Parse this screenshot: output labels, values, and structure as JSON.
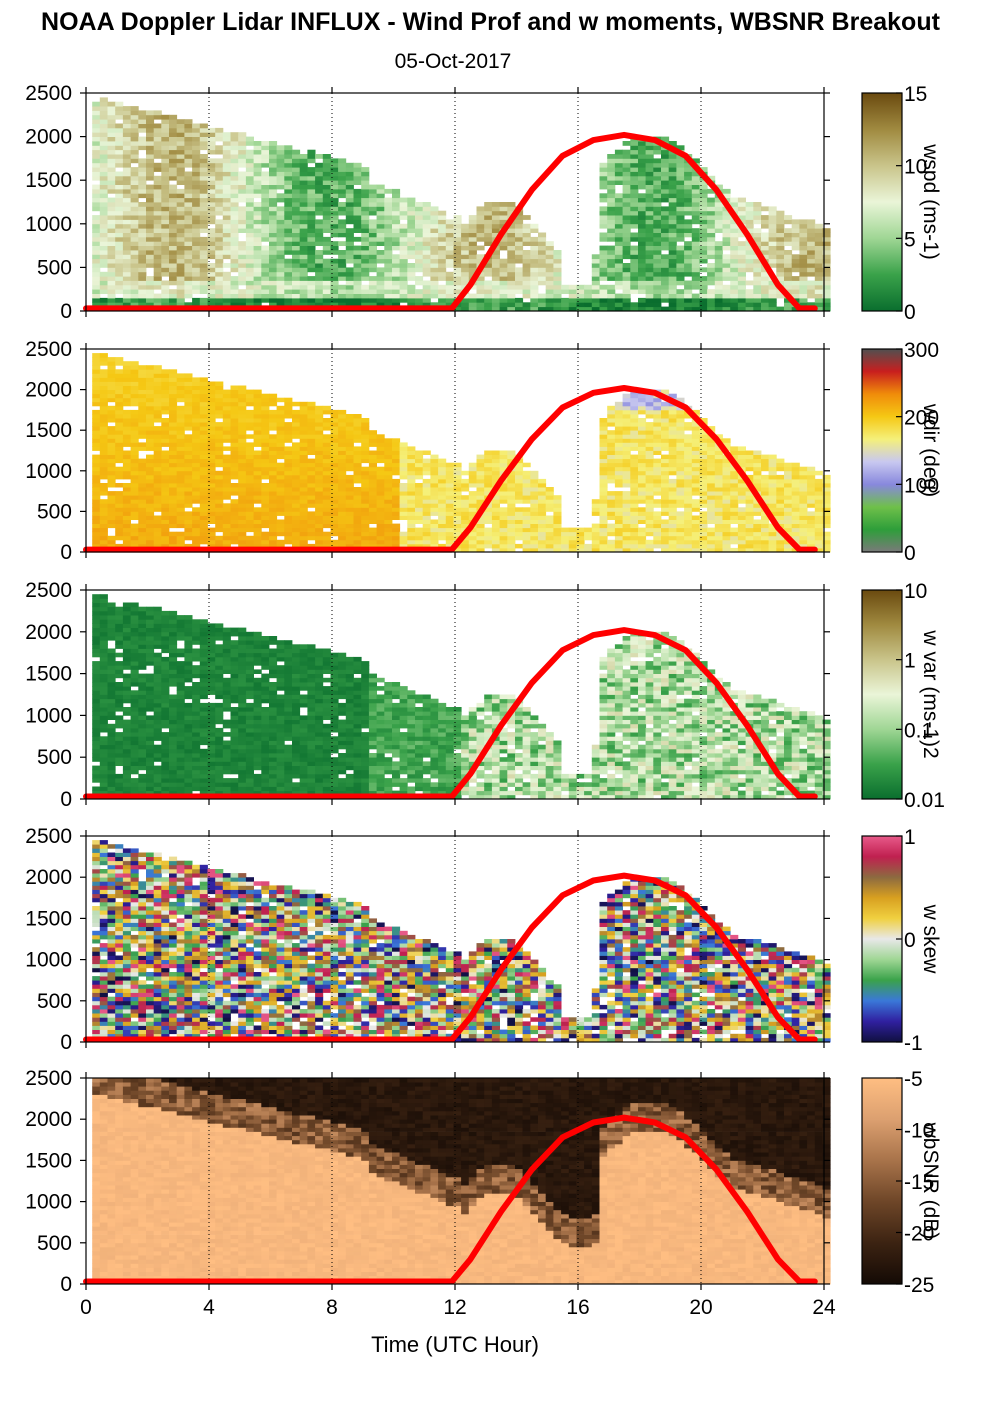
{
  "title": "NOAA Doppler Lidar INFLUX - Wind Prof and w moments, WBSNR Breakout",
  "subtitle": "05-Oct-2017",
  "xlabel": "Time (UTC Hour)",
  "chart_data": [
    {
      "type": "heatmap",
      "id": "wspd",
      "colorbar_label": "wspd (ms-1)",
      "colorbar_ticks": [
        "0",
        "5",
        "10",
        "15"
      ],
      "colorscale": [
        "#0a6e2e",
        "#3aa24a",
        "#9fd694",
        "#eaf5d8",
        "#c9c48a",
        "#a08a40",
        "#6a4a0f"
      ],
      "xlim": [
        0,
        24
      ],
      "ylim": [
        0,
        2500
      ],
      "x_ticks": [
        0,
        4,
        8,
        12,
        16,
        20,
        24
      ],
      "y_ticks": [
        "0",
        "500",
        "1000",
        "1500",
        "2000",
        "2500"
      ],
      "grid": "vertical dotted at 4-hour intervals",
      "overlay_curve": {
        "color": "#ff0000",
        "x": [
          0,
          11.9,
          12.5,
          13.5,
          14.5,
          15.5,
          16.5,
          17.5,
          18.5,
          19.5,
          20.5,
          21.5,
          22.5,
          23.2,
          23.7
        ],
        "y": [
          30,
          30,
          300,
          880,
          1390,
          1780,
          1960,
          2020,
          1960,
          1780,
          1390,
          880,
          300,
          30,
          30
        ]
      }
    },
    {
      "type": "heatmap",
      "id": "wdir",
      "colorbar_label": "wdir (deg)",
      "colorbar_ticks": [
        "0",
        "100",
        "200",
        "300"
      ],
      "colorscale": [
        "#7a7a7a",
        "#2e9e3a",
        "#6fc04a",
        "#8888dd",
        "#c8c8f0",
        "#f5f07a",
        "#f5c814",
        "#f08c0a",
        "#c81e1e",
        "#505050"
      ],
      "xlim": [
        0,
        24
      ],
      "ylim": [
        0,
        2500
      ],
      "x_ticks": [
        0,
        4,
        8,
        12,
        16,
        20,
        24
      ],
      "y_ticks": [
        "0",
        "500",
        "1000",
        "1500",
        "2000",
        "2500"
      ],
      "grid": "vertical dotted at 4-hour intervals",
      "overlay_curve": {
        "color": "#ff0000",
        "x": [
          0,
          11.9,
          12.5,
          13.5,
          14.5,
          15.5,
          16.5,
          17.5,
          18.5,
          19.5,
          20.5,
          21.5,
          22.5,
          23.2,
          23.7
        ],
        "y": [
          30,
          30,
          300,
          880,
          1390,
          1780,
          1960,
          2020,
          1960,
          1780,
          1390,
          880,
          300,
          30,
          30
        ]
      }
    },
    {
      "type": "heatmap",
      "id": "wvar",
      "colorbar_label": "w var (ms-1)2",
      "colorbar_ticks": [
        "0.01",
        "0.1",
        "1",
        "10"
      ],
      "colorscale": [
        "#0a6e2e",
        "#3aa24a",
        "#9fd694",
        "#eaf5d8",
        "#c9c48a",
        "#a08a40",
        "#6a4a0f"
      ],
      "xlim": [
        0,
        24
      ],
      "ylim": [
        0,
        2500
      ],
      "x_ticks": [
        0,
        4,
        8,
        12,
        16,
        20,
        24
      ],
      "y_ticks": [
        "0",
        "500",
        "1000",
        "1500",
        "2000",
        "2500"
      ],
      "grid": "vertical dotted at 4-hour intervals",
      "overlay_curve": {
        "color": "#ff0000",
        "x": [
          0,
          11.9,
          12.5,
          13.5,
          14.5,
          15.5,
          16.5,
          17.5,
          18.5,
          19.5,
          20.5,
          21.5,
          22.5,
          23.2,
          23.7
        ],
        "y": [
          30,
          30,
          300,
          880,
          1390,
          1780,
          1960,
          2020,
          1960,
          1780,
          1390,
          880,
          300,
          30,
          30
        ]
      }
    },
    {
      "type": "heatmap",
      "id": "wskew",
      "colorbar_label": "w skew",
      "colorbar_ticks": [
        "-1",
        "0",
        "1"
      ],
      "colorscale": [
        "#101040",
        "#3020a0",
        "#3a78d8",
        "#3aa24a",
        "#9fd694",
        "#e8e8e8",
        "#f0d040",
        "#d8a020",
        "#8c6a40",
        "#c02050",
        "#e85a8a"
      ],
      "xlim": [
        0,
        24
      ],
      "ylim": [
        0,
        2500
      ],
      "x_ticks": [
        0,
        4,
        8,
        12,
        16,
        20,
        24
      ],
      "y_ticks": [
        "0",
        "500",
        "1000",
        "1500",
        "2000",
        "2500"
      ],
      "grid": "vertical dotted at 4-hour intervals",
      "overlay_curve": {
        "color": "#ff0000",
        "x": [
          0,
          11.9,
          12.5,
          13.5,
          14.5,
          15.5,
          16.5,
          17.5,
          18.5,
          19.5,
          20.5,
          21.5,
          22.5,
          23.2,
          23.7
        ],
        "y": [
          30,
          30,
          300,
          880,
          1390,
          1780,
          1960,
          2020,
          1960,
          1780,
          1390,
          880,
          300,
          30,
          30
        ]
      }
    },
    {
      "type": "heatmap",
      "id": "wbsnr",
      "colorbar_label": "wbSNR (dB)",
      "colorbar_ticks": [
        "-25",
        "-20",
        "-15",
        "-10",
        "-5"
      ],
      "colorscale": [
        "#140a05",
        "#3c2312",
        "#6e4628",
        "#a8734a",
        "#dca070",
        "#ffbe82"
      ],
      "xlim": [
        0,
        24
      ],
      "ylim": [
        0,
        2500
      ],
      "x_ticks": [
        0,
        4,
        8,
        12,
        16,
        20,
        24
      ],
      "y_ticks": [
        "0",
        "500",
        "1000",
        "1500",
        "2000",
        "2500"
      ],
      "grid": "vertical dotted at 4-hour intervals",
      "overlay_curve": {
        "color": "#ff0000",
        "x": [
          0,
          11.9,
          12.5,
          13.5,
          14.5,
          15.5,
          16.5,
          17.5,
          18.5,
          19.5,
          20.5,
          21.5,
          22.5,
          23.2,
          23.7
        ],
        "y": [
          30,
          30,
          300,
          880,
          1390,
          1780,
          1960,
          2020,
          1960,
          1780,
          1390,
          880,
          300,
          30,
          30
        ]
      }
    }
  ]
}
